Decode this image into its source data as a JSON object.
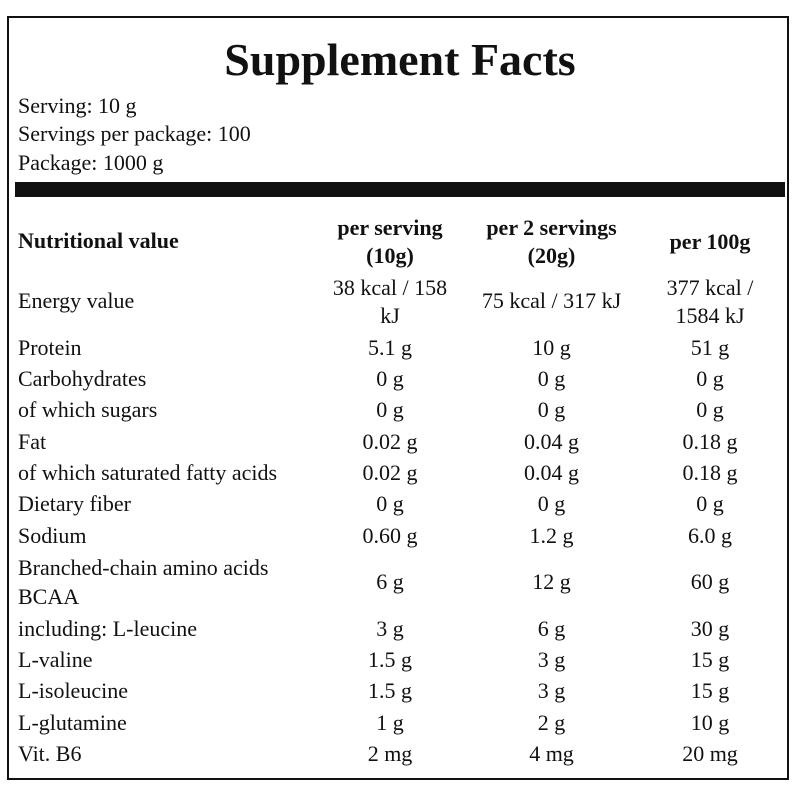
{
  "title": "Supplement Facts",
  "serving": "Serving: 10 g",
  "servings_per_package": "Servings per package: 100",
  "package": "Package: 1000 g",
  "header": {
    "col0": "Nutritional value",
    "col1_line1": "per serving",
    "col1_line2": "(10g)",
    "col2_line1": "per 2 servings",
    "col2_line2": "(20g)",
    "col3": "per 100g"
  },
  "energy": {
    "label": "Energy value",
    "c1_line1": "38 kcal / 158",
    "c1_line2": "kJ",
    "c2": "75 kcal / 317 kJ",
    "c3_line1": "377 kcal /",
    "c3_line2": "1584 kJ"
  },
  "rows": [
    {
      "label": "Protein",
      "c1": "5.1 g",
      "c2": "10 g",
      "c3": "51 g"
    },
    {
      "label": "Carbohydrates",
      "c1": "0 g",
      "c2": "0 g",
      "c3": "0 g"
    },
    {
      "label": "of which sugars",
      "c1": "0 g",
      "c2": "0 g",
      "c3": "0 g"
    },
    {
      "label": "Fat",
      "c1": "0.02 g",
      "c2": "0.04 g",
      "c3": "0.18 g"
    },
    {
      "label": "of which saturated fatty acids",
      "c1": "0.02 g",
      "c2": "0.04 g",
      "c3": "0.18 g"
    },
    {
      "label": "Dietary fiber",
      "c1": "0 g",
      "c2": "0 g",
      "c3": "0 g"
    },
    {
      "label": "Sodium",
      "c1": "0.60 g",
      "c2": "1.2 g",
      "c3": "6.0 g"
    }
  ],
  "bcaa": {
    "label_line1": "Branched-chain amino acids",
    "label_line2": "BCAA",
    "c1": "6 g",
    "c2": "12 g",
    "c3": "60 g"
  },
  "rows2": [
    {
      "label": "including: L-leucine",
      "c1": "3 g",
      "c2": "6 g",
      "c3": "30 g"
    },
    {
      "label": "L-valine",
      "c1": "1.5 g",
      "c2": "3 g",
      "c3": "15 g"
    },
    {
      "label": "L-isoleucine",
      "c1": "1.5 g",
      "c2": "3 g",
      "c3": "15 g"
    },
    {
      "label": "L-glutamine",
      "c1": "1 g",
      "c2": "2 g",
      "c3": "10 g"
    },
    {
      "label": "Vit. B6",
      "c1": "2 mg",
      "c2": "4 mg",
      "c3": "20 mg"
    }
  ]
}
